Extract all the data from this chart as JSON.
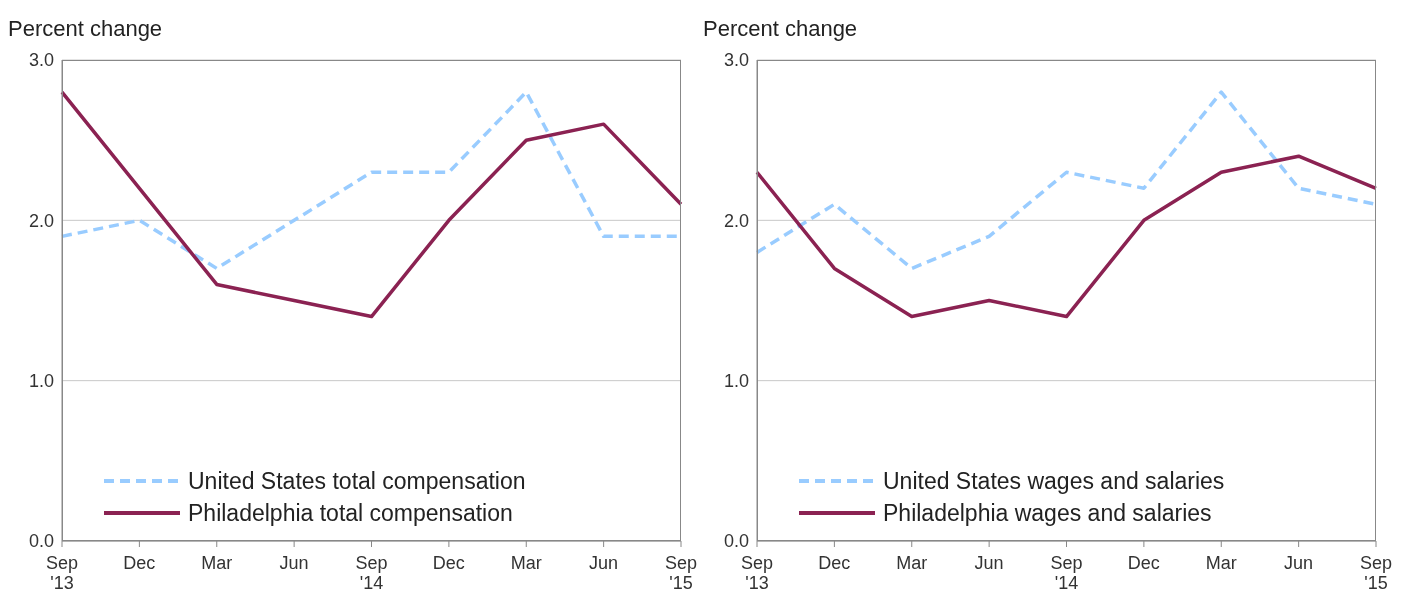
{
  "chart_data": [
    {
      "type": "line",
      "ylabel": "Percent change",
      "categories": [
        "Sep\n'13",
        "Dec",
        "Mar",
        "Jun",
        "Sep\n'14",
        "Dec",
        "Mar",
        "Jun",
        "Sep\n'15"
      ],
      "series": [
        {
          "name": "United States total compensation",
          "color": "#99ccff",
          "line_style": "dashed",
          "values": [
            1.9,
            2.0,
            1.7,
            2.0,
            2.3,
            2.3,
            2.8,
            1.9,
            1.9
          ]
        },
        {
          "name": "Philadelphia total compensation",
          "color": "#8b2252",
          "line_style": "solid",
          "values": [
            2.8,
            null,
            1.6,
            1.5,
            1.4,
            2.0,
            2.5,
            2.6,
            2.1
          ]
        }
      ],
      "ylim": [
        0,
        3
      ],
      "yticks": [
        {
          "value": 0,
          "label": "0.0"
        },
        {
          "value": 1,
          "label": "1.0"
        },
        {
          "value": 2,
          "label": "2.0"
        },
        {
          "value": 3,
          "label": "3.0"
        }
      ],
      "grid": "y",
      "legend": "bottom left",
      "marker": "none"
    },
    {
      "type": "line",
      "ylabel": "Percent change",
      "categories": [
        "Sep\n'13",
        "Dec",
        "Mar",
        "Jun",
        "Sep\n'14",
        "Dec",
        "Mar",
        "Jun",
        "Sep\n'15"
      ],
      "series": [
        {
          "name": "United States wages and salaries",
          "color": "#99ccff",
          "line_style": "dashed",
          "values": [
            1.8,
            2.1,
            1.7,
            1.9,
            2.3,
            2.2,
            2.8,
            2.2,
            2.1
          ]
        },
        {
          "name": "Philadelphia wages and salaries",
          "color": "#8b2252",
          "line_style": "solid",
          "values": [
            2.3,
            1.7,
            1.4,
            1.5,
            1.4,
            2.0,
            2.3,
            2.4,
            2.2
          ]
        }
      ],
      "ylim": [
        0,
        3
      ],
      "yticks": [
        {
          "value": 0,
          "label": "0.0"
        },
        {
          "value": 1,
          "label": "1.0"
        },
        {
          "value": 2,
          "label": "2.0"
        },
        {
          "value": 3,
          "label": "3.0"
        }
      ],
      "grid": "y",
      "legend": "bottom left",
      "marker": "none"
    }
  ]
}
